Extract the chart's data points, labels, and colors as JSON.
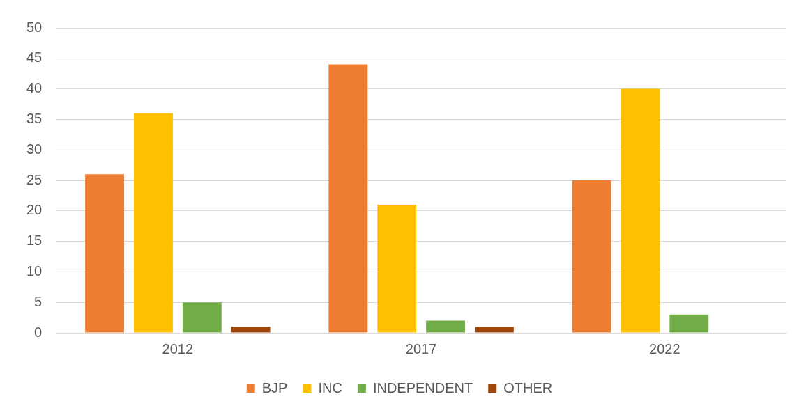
{
  "chart_data": {
    "type": "bar",
    "categories": [
      "2012",
      "2017",
      "2022"
    ],
    "series": [
      {
        "name": "BJP",
        "color": "#ed7d31",
        "values": [
          26,
          44,
          25
        ]
      },
      {
        "name": "INC",
        "color": "#ffc000",
        "values": [
          36,
          21,
          40
        ]
      },
      {
        "name": "INDEPENDENT",
        "color": "#70ad47",
        "values": [
          5,
          2,
          3
        ]
      },
      {
        "name": "OTHER",
        "color": "#9e480e",
        "values": [
          1,
          1,
          0
        ]
      }
    ],
    "ylim": [
      0,
      50
    ],
    "yticks": [
      0,
      5,
      10,
      15,
      20,
      25,
      30,
      35,
      40,
      45,
      50
    ],
    "grid": "y",
    "legend": "bottom"
  }
}
